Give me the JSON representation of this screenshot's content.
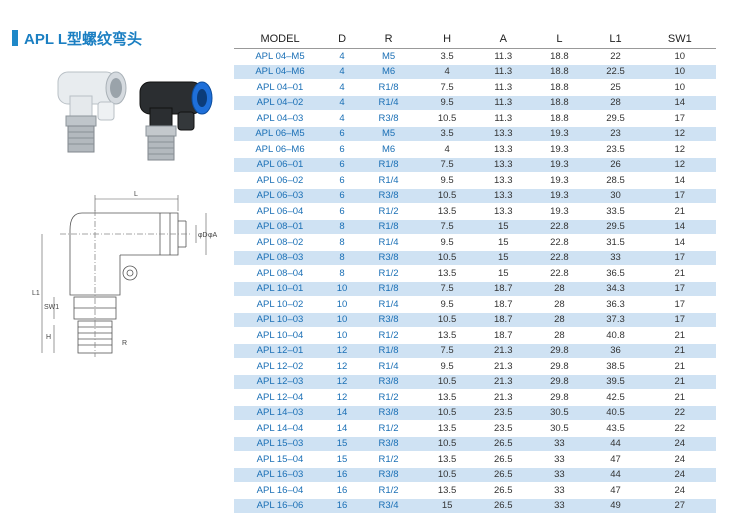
{
  "title": "APL L型螺纹弯头",
  "table": {
    "headers": [
      "MODEL",
      "D",
      "R",
      "H",
      "A",
      "L",
      "L1",
      "SW1"
    ],
    "rows": [
      [
        "APL 04–M5",
        "4",
        "M5",
        "3.5",
        "11.3",
        "18.8",
        "22",
        "10"
      ],
      [
        "APL 04–M6",
        "4",
        "M6",
        "4",
        "11.3",
        "18.8",
        "22.5",
        "10"
      ],
      [
        "APL 04–01",
        "4",
        "R1/8",
        "7.5",
        "11.3",
        "18.8",
        "25",
        "10"
      ],
      [
        "APL 04–02",
        "4",
        "R1/4",
        "9.5",
        "11.3",
        "18.8",
        "28",
        "14"
      ],
      [
        "APL 04–03",
        "4",
        "R3/8",
        "10.5",
        "11.3",
        "18.8",
        "29.5",
        "17"
      ],
      [
        "APL 06–M5",
        "6",
        "M5",
        "3.5",
        "13.3",
        "19.3",
        "23",
        "12"
      ],
      [
        "APL 06–M6",
        "6",
        "M6",
        "4",
        "13.3",
        "19.3",
        "23.5",
        "12"
      ],
      [
        "APL 06–01",
        "6",
        "R1/8",
        "7.5",
        "13.3",
        "19.3",
        "26",
        "12"
      ],
      [
        "APL 06–02",
        "6",
        "R1/4",
        "9.5",
        "13.3",
        "19.3",
        "28.5",
        "14"
      ],
      [
        "APL 06–03",
        "6",
        "R3/8",
        "10.5",
        "13.3",
        "19.3",
        "30",
        "17"
      ],
      [
        "APL 06–04",
        "6",
        "R1/2",
        "13.5",
        "13.3",
        "19.3",
        "33.5",
        "21"
      ],
      [
        "APL 08–01",
        "8",
        "R1/8",
        "7.5",
        "15",
        "22.8",
        "29.5",
        "14"
      ],
      [
        "APL 08–02",
        "8",
        "R1/4",
        "9.5",
        "15",
        "22.8",
        "31.5",
        "14"
      ],
      [
        "APL 08–03",
        "8",
        "R3/8",
        "10.5",
        "15",
        "22.8",
        "33",
        "17"
      ],
      [
        "APL 08–04",
        "8",
        "R1/2",
        "13.5",
        "15",
        "22.8",
        "36.5",
        "21"
      ],
      [
        "APL 10–01",
        "10",
        "R1/8",
        "7.5",
        "18.7",
        "28",
        "34.3",
        "17"
      ],
      [
        "APL 10–02",
        "10",
        "R1/4",
        "9.5",
        "18.7",
        "28",
        "36.3",
        "17"
      ],
      [
        "APL 10–03",
        "10",
        "R3/8",
        "10.5",
        "18.7",
        "28",
        "37.3",
        "17"
      ],
      [
        "APL 10–04",
        "10",
        "R1/2",
        "13.5",
        "18.7",
        "28",
        "40.8",
        "21"
      ],
      [
        "APL 12–01",
        "12",
        "R1/8",
        "7.5",
        "21.3",
        "29.8",
        "36",
        "21"
      ],
      [
        "APL 12–02",
        "12",
        "R1/4",
        "9.5",
        "21.3",
        "29.8",
        "38.5",
        "21"
      ],
      [
        "APL 12–03",
        "12",
        "R3/8",
        "10.5",
        "21.3",
        "29.8",
        "39.5",
        "21"
      ],
      [
        "APL 12–04",
        "12",
        "R1/2",
        "13.5",
        "21.3",
        "29.8",
        "42.5",
        "21"
      ],
      [
        "APL 14–03",
        "14",
        "R3/8",
        "10.5",
        "23.5",
        "30.5",
        "40.5",
        "22"
      ],
      [
        "APL 14–04",
        "14",
        "R1/2",
        "13.5",
        "23.5",
        "30.5",
        "43.5",
        "22"
      ],
      [
        "APL 15–03",
        "15",
        "R3/8",
        "10.5",
        "26.5",
        "33",
        "44",
        "24"
      ],
      [
        "APL 15–04",
        "15",
        "R1/2",
        "13.5",
        "26.5",
        "33",
        "47",
        "24"
      ],
      [
        "APL 16–03",
        "16",
        "R3/8",
        "10.5",
        "26.5",
        "33",
        "44",
        "24"
      ],
      [
        "APL 16–04",
        "16",
        "R1/2",
        "13.5",
        "26.5",
        "33",
        "47",
        "24"
      ],
      [
        "APL 16–06",
        "16",
        "R3/4",
        "15",
        "26.5",
        "33",
        "49",
        "27"
      ]
    ]
  },
  "drawing_labels": {
    "L": "L",
    "phiD": "φD",
    "phiA": "φA",
    "L1": "L1",
    "SW1": "SW1",
    "H": "H",
    "R": "R"
  },
  "colors": {
    "accent": "#1b7fc2",
    "row_stripe": "#cfe2f3",
    "fitting_blue": "#1e6fd9"
  }
}
